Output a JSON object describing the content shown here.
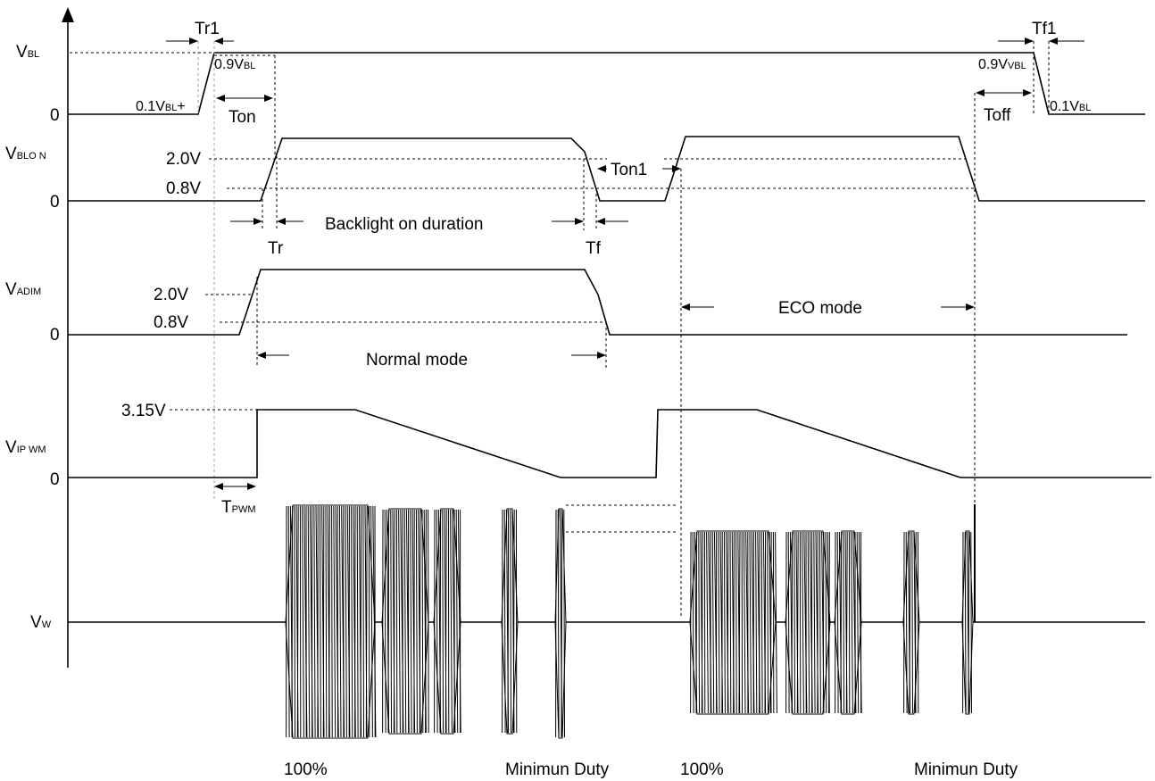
{
  "signals": {
    "vbl": {
      "main": "V",
      "sub": "BL"
    },
    "vblon": {
      "main": "V",
      "sub": "BLO N"
    },
    "vadim": {
      "main": "V",
      "sub": "ADIM"
    },
    "vipwm": {
      "main": "V",
      "sub": "IP WM"
    },
    "vw": {
      "main": "V",
      "sub": "W"
    }
  },
  "zero": "0",
  "levels": {
    "v20": "2.0V",
    "v08": "0.8V",
    "v315": "3.15V",
    "v01_main": "0.1V",
    "v09_main": "0.9V",
    "bl_sub": "BL",
    "vbl_sub": "VBL",
    "plus_mark": "+"
  },
  "timing": {
    "tr1": "Tr1",
    "tf1": "Tf1",
    "ton": "Ton",
    "toff": "Toff",
    "ton1": "Ton1",
    "tr": "Tr",
    "tf": "Tf",
    "tpwm_main": "T",
    "tpwm_sub": "PWM"
  },
  "labels": {
    "backlight": "Backlight on duration",
    "normal": "Normal mode",
    "eco": "ECO mode",
    "p100_a": "100%",
    "min_a": "Minimun  Duty",
    "p100_b": "100%",
    "min_b": "Minimun  Duty"
  }
}
